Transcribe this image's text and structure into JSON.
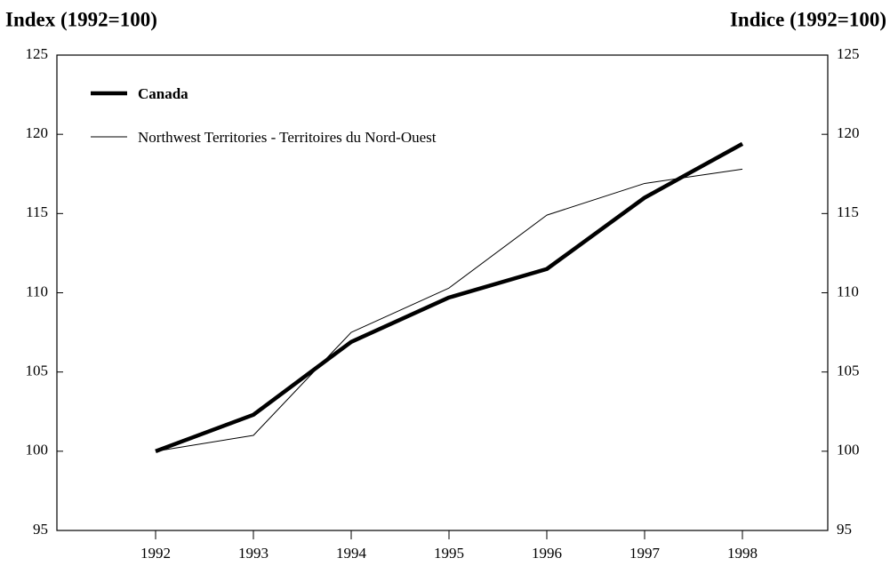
{
  "chart_data": {
    "type": "line",
    "y_label": "Index (1992=100)",
    "y2_label": "Indice (1992=100)",
    "categories": [
      "1992",
      "1993",
      "1994",
      "1995",
      "1996",
      "1997",
      "1998"
    ],
    "series": [
      {
        "name": "Canada",
        "color": "#000000",
        "values": [
          100,
          102.3,
          106.9,
          109.7,
          111.5,
          116,
          119.4
        ]
      },
      {
        "name": "Northwest Territories - Territoires du Nord-Ouest",
        "color": "#000000",
        "values": [
          100,
          101,
          107.5,
          110.3,
          114.9,
          116.9,
          117.8
        ]
      }
    ],
    "ylim": [
      95,
      125
    ],
    "yticks": [
      95,
      100,
      105,
      110,
      115,
      120,
      125
    ],
    "y2lim": [
      95,
      125
    ],
    "y2ticks": [
      95,
      100,
      105,
      110,
      115,
      120,
      125
    ],
    "legend": "upper left"
  }
}
